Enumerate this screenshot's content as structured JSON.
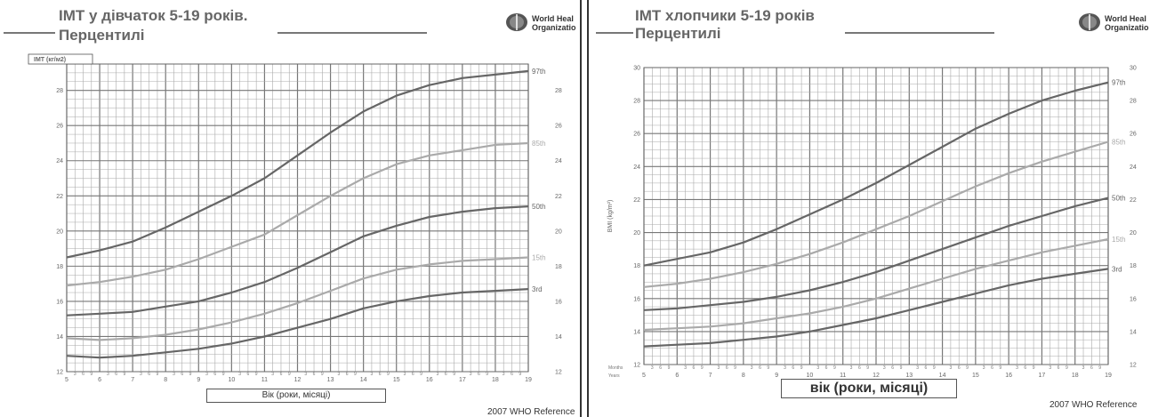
{
  "left": {
    "title_line1": "IMT у дівчаток 5-19 років.",
    "title_line2": "Перцентилі",
    "who_line1": "World Heal",
    "who_line2": "Organizatio",
    "reference": "2007 WHO Reference",
    "ylabel_box": "IMT (кг/м2)",
    "xlabel": "Вік (роки, місяці)"
  },
  "right": {
    "title_line1": "IMT хлопчики 5-19 років",
    "title_line2": "Перцентилі",
    "who_line1": "World Heal",
    "who_line2": "Organizatio",
    "reference": "2007 WHO Reference",
    "ylabel": "BMI (kg/m²)",
    "xlabel": "вік (роки, місяці)",
    "months_label": "Months",
    "years_label": "Years"
  },
  "colors": {
    "dark_curve": "#666666",
    "light_curve": "#aaaaaa",
    "grid": "#aaaaaa",
    "grid_major": "#777777"
  },
  "chart_data": [
    {
      "type": "line",
      "title": "IMT у дівчаток 5-19 років. Перцентилі",
      "xlabel": "Вік (роки, місяці)",
      "ylabel": "IMT (кг/м2)",
      "xlim": [
        5,
        19
      ],
      "ylim": [
        12,
        29.5
      ],
      "x_ticks": [
        5,
        6,
        7,
        8,
        9,
        10,
        11,
        12,
        13,
        14,
        15,
        16,
        17,
        18,
        19
      ],
      "y_ticks": [
        12,
        14,
        16,
        18,
        20,
        22,
        24,
        26,
        28
      ],
      "month_ticks": [
        "3",
        "6",
        "9"
      ],
      "x": [
        5,
        6,
        7,
        8,
        9,
        10,
        11,
        12,
        13,
        14,
        15,
        16,
        17,
        18,
        19
      ],
      "series": [
        {
          "name": "97th",
          "shade": "dark",
          "values": [
            18.5,
            18.9,
            19.4,
            20.2,
            21.1,
            22.0,
            23.0,
            24.3,
            25.6,
            26.8,
            27.7,
            28.3,
            28.7,
            28.9,
            29.1
          ]
        },
        {
          "name": "85th",
          "shade": "light",
          "values": [
            16.9,
            17.1,
            17.4,
            17.8,
            18.4,
            19.1,
            19.8,
            20.9,
            22.0,
            23.0,
            23.8,
            24.3,
            24.6,
            24.9,
            25.0
          ]
        },
        {
          "name": "50th",
          "shade": "dark",
          "values": [
            15.2,
            15.3,
            15.4,
            15.7,
            16.0,
            16.5,
            17.1,
            17.9,
            18.8,
            19.7,
            20.3,
            20.8,
            21.1,
            21.3,
            21.4
          ]
        },
        {
          "name": "15th",
          "shade": "light",
          "values": [
            13.9,
            13.8,
            13.9,
            14.1,
            14.4,
            14.8,
            15.3,
            15.9,
            16.6,
            17.3,
            17.8,
            18.1,
            18.3,
            18.4,
            18.5
          ]
        },
        {
          "name": "3rd",
          "shade": "dark",
          "values": [
            12.9,
            12.8,
            12.9,
            13.1,
            13.3,
            13.6,
            14.0,
            14.5,
            15.0,
            15.6,
            16.0,
            16.3,
            16.5,
            16.6,
            16.7
          ]
        }
      ]
    },
    {
      "type": "line",
      "title": "IMT хлопчики 5-19 років Перцентилі",
      "xlabel": "вік (роки, місяці)",
      "ylabel": "BMI (kg/m²)",
      "xlim": [
        5,
        19
      ],
      "ylim": [
        12,
        30
      ],
      "x_ticks": [
        5,
        6,
        7,
        8,
        9,
        10,
        11,
        12,
        13,
        14,
        15,
        16,
        17,
        18,
        19
      ],
      "y_ticks": [
        12,
        14,
        16,
        18,
        20,
        22,
        24,
        26,
        28,
        30
      ],
      "month_ticks": [
        "3",
        "6",
        "9"
      ],
      "x": [
        5,
        6,
        7,
        8,
        9,
        10,
        11,
        12,
        13,
        14,
        15,
        16,
        17,
        18,
        19
      ],
      "series": [
        {
          "name": "97th",
          "shade": "dark",
          "values": [
            18.0,
            18.4,
            18.8,
            19.4,
            20.2,
            21.1,
            22.0,
            23.0,
            24.1,
            25.2,
            26.3,
            27.2,
            28.0,
            28.6,
            29.1
          ]
        },
        {
          "name": "85th",
          "shade": "light",
          "values": [
            16.7,
            16.9,
            17.2,
            17.6,
            18.1,
            18.7,
            19.4,
            20.2,
            21.0,
            21.9,
            22.8,
            23.6,
            24.3,
            24.9,
            25.5
          ]
        },
        {
          "name": "50th",
          "shade": "dark",
          "values": [
            15.3,
            15.4,
            15.6,
            15.8,
            16.1,
            16.5,
            17.0,
            17.6,
            18.3,
            19.0,
            19.7,
            20.4,
            21.0,
            21.6,
            22.1
          ]
        },
        {
          "name": "15th",
          "shade": "light",
          "values": [
            14.1,
            14.2,
            14.3,
            14.5,
            14.8,
            15.1,
            15.5,
            16.0,
            16.6,
            17.2,
            17.8,
            18.3,
            18.8,
            19.2,
            19.6
          ]
        },
        {
          "name": "3rd",
          "shade": "dark",
          "values": [
            13.1,
            13.2,
            13.3,
            13.5,
            13.7,
            14.0,
            14.4,
            14.8,
            15.3,
            15.8,
            16.3,
            16.8,
            17.2,
            17.5,
            17.8
          ]
        }
      ]
    }
  ]
}
